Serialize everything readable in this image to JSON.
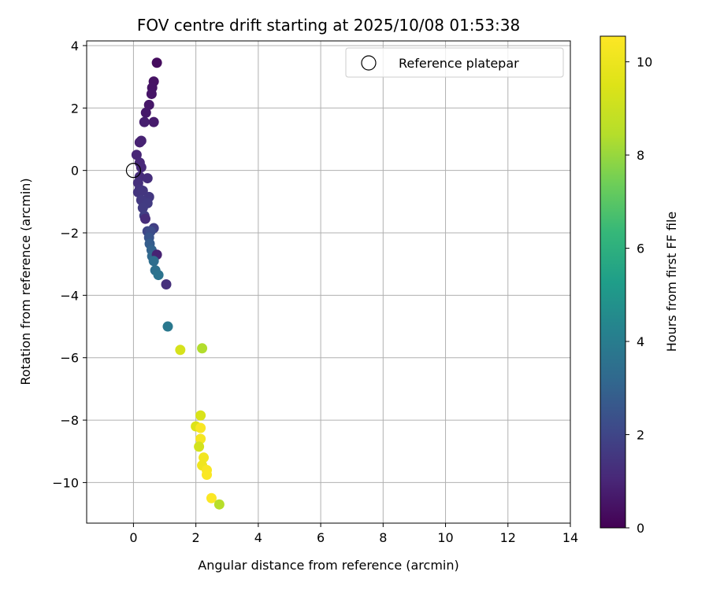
{
  "chart_data": {
    "type": "scatter",
    "title": "FOV centre drift starting at 2025/10/08 01:53:38",
    "xlabel": "Angular distance from reference (arcmin)",
    "ylabel": "Rotation from reference (arcmin)",
    "xlim": [
      -1.5,
      14
    ],
    "ylim": [
      -11.3,
      4.15
    ],
    "xticks": [
      0,
      2,
      4,
      6,
      8,
      10,
      12,
      14
    ],
    "yticks": [
      4,
      2,
      0,
      -2,
      -4,
      -6,
      -8,
      -10
    ],
    "xtick_labels": [
      "0",
      "2",
      "4",
      "6",
      "8",
      "10",
      "12",
      "14"
    ],
    "ytick_labels": [
      "4",
      "2",
      "0",
      "−2",
      "−4",
      "−6",
      "−8",
      "−10"
    ],
    "grid": true,
    "legend": {
      "location": "upper right",
      "entries": [
        "Reference platepar"
      ]
    },
    "reference_point": {
      "x": 0,
      "y": 0,
      "label": "Reference platepar"
    },
    "colorbar": {
      "label": "Hours from first FF file",
      "colormap": "viridis",
      "range": [
        0,
        10.55
      ],
      "ticks": [
        0,
        2,
        4,
        6,
        8,
        10
      ],
      "tick_labels": [
        "0",
        "2",
        "4",
        "6",
        "8",
        "10"
      ]
    },
    "points": [
      {
        "x": 0.75,
        "y": 3.45,
        "c": 0.3
      },
      {
        "x": 0.65,
        "y": 2.85,
        "c": 0.45
      },
      {
        "x": 0.6,
        "y": 2.65,
        "c": 0.5
      },
      {
        "x": 0.58,
        "y": 2.45,
        "c": 0.55
      },
      {
        "x": 0.5,
        "y": 2.1,
        "c": 0.6
      },
      {
        "x": 0.4,
        "y": 1.85,
        "c": 0.65
      },
      {
        "x": 0.35,
        "y": 1.55,
        "c": 0.8
      },
      {
        "x": 0.65,
        "y": 1.55,
        "c": 0.7
      },
      {
        "x": 0.2,
        "y": 0.9,
        "c": 0.85
      },
      {
        "x": 0.25,
        "y": 0.95,
        "c": 0.9
      },
      {
        "x": 0.1,
        "y": 0.5,
        "c": 1.0
      },
      {
        "x": 0.2,
        "y": 0.25,
        "c": 1.05
      },
      {
        "x": 0.25,
        "y": 0.1,
        "c": 1.1
      },
      {
        "x": 0.2,
        "y": -0.2,
        "c": 1.2
      },
      {
        "x": 0.45,
        "y": -0.25,
        "c": 1.25
      },
      {
        "x": 0.15,
        "y": -0.4,
        "c": 1.3
      },
      {
        "x": 0.2,
        "y": -0.6,
        "c": 1.4
      },
      {
        "x": 0.15,
        "y": -0.7,
        "c": 1.45
      },
      {
        "x": 0.3,
        "y": -0.65,
        "c": 1.5
      },
      {
        "x": 0.5,
        "y": -0.85,
        "c": 1.55
      },
      {
        "x": 0.25,
        "y": -0.95,
        "c": 1.6
      },
      {
        "x": 0.45,
        "y": -1.05,
        "c": 1.65
      },
      {
        "x": 0.3,
        "y": -1.2,
        "c": 1.7
      },
      {
        "x": 0.35,
        "y": -1.45,
        "c": 1.75
      },
      {
        "x": 0.38,
        "y": -1.55,
        "c": 1.2
      },
      {
        "x": 0.65,
        "y": -1.85,
        "c": 1.8
      },
      {
        "x": 0.45,
        "y": -1.95,
        "c": 2.0
      },
      {
        "x": 0.55,
        "y": -1.95,
        "c": 2.2
      },
      {
        "x": 0.5,
        "y": -2.15,
        "c": 2.5
      },
      {
        "x": 0.52,
        "y": -2.35,
        "c": 2.8
      },
      {
        "x": 0.58,
        "y": -2.55,
        "c": 3.0
      },
      {
        "x": 0.6,
        "y": -2.75,
        "c": 3.2
      },
      {
        "x": 0.75,
        "y": -2.7,
        "c": 0.9
      },
      {
        "x": 0.65,
        "y": -2.9,
        "c": 3.4
      },
      {
        "x": 0.7,
        "y": -3.2,
        "c": 3.5
      },
      {
        "x": 0.8,
        "y": -3.35,
        "c": 3.6
      },
      {
        "x": 1.05,
        "y": -3.65,
        "c": 1.3
      },
      {
        "x": 1.1,
        "y": -5.0,
        "c": 3.8
      },
      {
        "x": 1.5,
        "y": -5.75,
        "c": 9.3
      },
      {
        "x": 2.2,
        "y": -5.7,
        "c": 8.4
      },
      {
        "x": 2.15,
        "y": -7.85,
        "c": 9.4
      },
      {
        "x": 2.0,
        "y": -8.2,
        "c": 9.5
      },
      {
        "x": 2.15,
        "y": -8.25,
        "c": 10.4
      },
      {
        "x": 2.15,
        "y": -8.6,
        "c": 10.3
      },
      {
        "x": 2.1,
        "y": -8.85,
        "c": 9.2
      },
      {
        "x": 2.25,
        "y": -9.2,
        "c": 10.2
      },
      {
        "x": 2.2,
        "y": -9.45,
        "c": 10.1
      },
      {
        "x": 2.35,
        "y": -9.6,
        "c": 10.4
      },
      {
        "x": 2.35,
        "y": -9.75,
        "c": 10.45
      },
      {
        "x": 2.5,
        "y": -10.5,
        "c": 10.5
      },
      {
        "x": 2.75,
        "y": -10.7,
        "c": 8.5
      }
    ]
  }
}
